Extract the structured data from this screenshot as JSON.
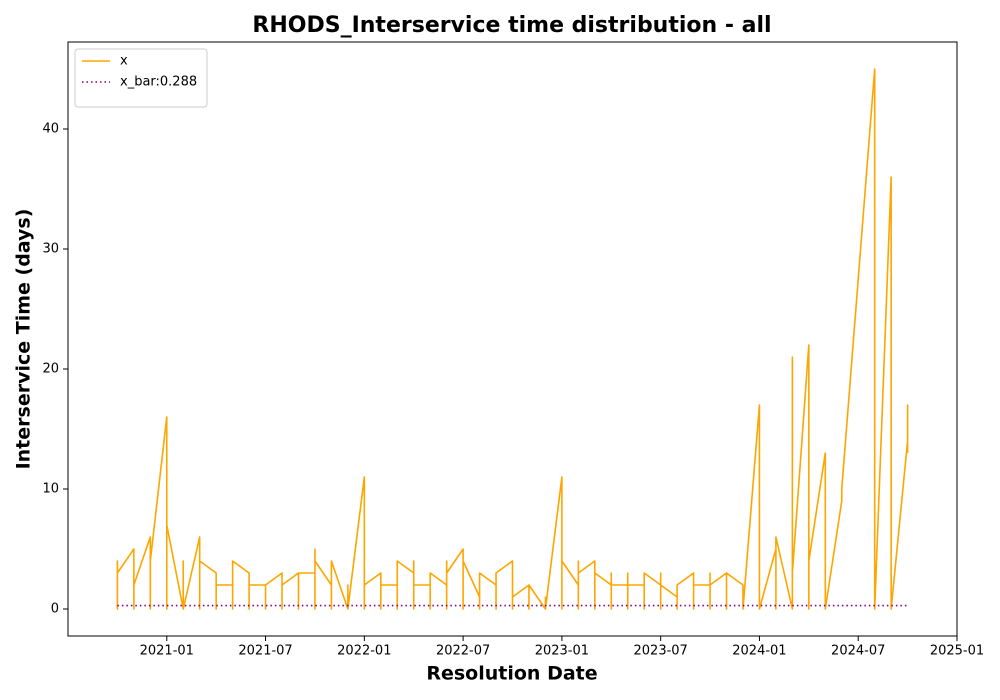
{
  "chart_data": {
    "type": "line",
    "title": "RHODS_Interservice time distribution - all",
    "x_label": "Resolution Date",
    "y_label": "Interservice Time (days)",
    "xlim": [
      "2020-07",
      "2025-01"
    ],
    "xticks": [
      "2021-01",
      "2021-07",
      "2022-01",
      "2022-07",
      "2023-01",
      "2023-07",
      "2024-01",
      "2024-07",
      "2025-01"
    ],
    "ylim": [
      -2.25,
      47.25
    ],
    "yticks": [
      0,
      10,
      20,
      30,
      40
    ],
    "grid": false,
    "legend": "upper left",
    "series": [
      {
        "name": "x",
        "color": "#ffa500",
        "style": "solid",
        "x": [
          "2020-10",
          "2020-10",
          "2020-10",
          "2020-10",
          "2020-10",
          "2020-11",
          "2020-11",
          "2020-11",
          "2020-11",
          "2020-11",
          "2020-12",
          "2020-12",
          "2020-12",
          "2020-12",
          "2020-12",
          "2021-01",
          "2021-01",
          "2021-01",
          "2021-02",
          "2021-02",
          "2021-02",
          "2021-02",
          "2021-02",
          "2021-03",
          "2021-03",
          "2021-03",
          "2021-03",
          "2021-03",
          "2021-04",
          "2021-04",
          "2021-04",
          "2021-04",
          "2021-04",
          "2021-05",
          "2021-05",
          "2021-05",
          "2021-05",
          "2021-05",
          "2021-06",
          "2021-06",
          "2021-06",
          "2021-06",
          "2021-06",
          "2021-07",
          "2021-07",
          "2021-07",
          "2021-07",
          "2021-07",
          "2021-08",
          "2021-08",
          "2021-08",
          "2021-08",
          "2021-08",
          "2021-09",
          "2021-09",
          "2021-09",
          "2021-09",
          "2021-09",
          "2021-10",
          "2021-10",
          "2021-10",
          "2021-10",
          "2021-10",
          "2021-11",
          "2021-11",
          "2021-11",
          "2021-11",
          "2021-11",
          "2021-12",
          "2021-12",
          "2021-12",
          "2022-01",
          "2022-01",
          "2022-01",
          "2022-01",
          "2022-01",
          "2022-02",
          "2022-02",
          "2022-02",
          "2022-02",
          "2022-02",
          "2022-03",
          "2022-03",
          "2022-03",
          "2022-03",
          "2022-03",
          "2022-04",
          "2022-04",
          "2022-04",
          "2022-04",
          "2022-04",
          "2022-05",
          "2022-05",
          "2022-05",
          "2022-05",
          "2022-05",
          "2022-06",
          "2022-06",
          "2022-06",
          "2022-06",
          "2022-06",
          "2022-07",
          "2022-07",
          "2022-07",
          "2022-07",
          "2022-07",
          "2022-08",
          "2022-08",
          "2022-08",
          "2022-08",
          "2022-08",
          "2022-09",
          "2022-09",
          "2022-09",
          "2022-09",
          "2022-09",
          "2022-10",
          "2022-10",
          "2022-10",
          "2022-10",
          "2022-10",
          "2022-11",
          "2022-11",
          "2022-11",
          "2022-11",
          "2022-11",
          "2022-12",
          "2022-12",
          "2022-12",
          "2023-01",
          "2023-01",
          "2023-01",
          "2023-01",
          "2023-01",
          "2023-02",
          "2023-02",
          "2023-02",
          "2023-02",
          "2023-02",
          "2023-03",
          "2023-03",
          "2023-03",
          "2023-03",
          "2023-03",
          "2023-04",
          "2023-04",
          "2023-04",
          "2023-04",
          "2023-04",
          "2023-05",
          "2023-05",
          "2023-05",
          "2023-05",
          "2023-05",
          "2023-06",
          "2023-06",
          "2023-06",
          "2023-06",
          "2023-06",
          "2023-07",
          "2023-07",
          "2023-07",
          "2023-07",
          "2023-07",
          "2023-08",
          "2023-08",
          "2023-08",
          "2023-08",
          "2023-08",
          "2023-09",
          "2023-09",
          "2023-09",
          "2023-09",
          "2023-09",
          "2023-10",
          "2023-10",
          "2023-10",
          "2023-10",
          "2023-10",
          "2023-11",
          "2023-11",
          "2023-11",
          "2023-11",
          "2023-11",
          "2023-12",
          "2023-12",
          "2023-12",
          "2023-12",
          "2024-01",
          "2024-01",
          "2024-02",
          "2024-02",
          "2024-02",
          "2024-02",
          "2024-02",
          "2024-03",
          "2024-03",
          "2024-03",
          "2024-03",
          "2024-03",
          "2024-04",
          "2024-04",
          "2024-04",
          "2024-05",
          "2024-05",
          "2024-06",
          "2024-06",
          "2024-08",
          "2024-08",
          "2024-08",
          "2024-08",
          "2024-09",
          "2024-09",
          "2024-10",
          "2024-10",
          "2024-10"
        ],
        "values": [
          3,
          0,
          4,
          0,
          3,
          5,
          0,
          3,
          0,
          2,
          6,
          0,
          5,
          0,
          4,
          16,
          0,
          7,
          0,
          4,
          0,
          3,
          0,
          6,
          0,
          4,
          0,
          4,
          3,
          0,
          3,
          0,
          2,
          2,
          0,
          4,
          0,
          4,
          3,
          0,
          2,
          0,
          2,
          2,
          0,
          2,
          0,
          2,
          3,
          0,
          3,
          0,
          2,
          3,
          0,
          2,
          0,
          3,
          3,
          0,
          5,
          0,
          4,
          2,
          0,
          4,
          0,
          4,
          0,
          2,
          0,
          11,
          0,
          4,
          0,
          2,
          3,
          0,
          2,
          0,
          2,
          2,
          0,
          2,
          0,
          4,
          3,
          0,
          4,
          0,
          2,
          2,
          0,
          3,
          0,
          3,
          2,
          0,
          4,
          0,
          3,
          5,
          0,
          1,
          0,
          4,
          1,
          0,
          2,
          0,
          3,
          2,
          0,
          3,
          0,
          3,
          4,
          0,
          2,
          0,
          1,
          2,
          0,
          1,
          0,
          2,
          0,
          1,
          0,
          11,
          0,
          4,
          0,
          4,
          2,
          0,
          4,
          0,
          3,
          4,
          0,
          2,
          0,
          3,
          2,
          0,
          3,
          0,
          2,
          2,
          0,
          3,
          0,
          2,
          2,
          0,
          1,
          0,
          3,
          2,
          0,
          3,
          0,
          2,
          1,
          0,
          2,
          0,
          2,
          3,
          0,
          2,
          0,
          2,
          2,
          0,
          3,
          0,
          2,
          3,
          0,
          2,
          0,
          3,
          2,
          0,
          1,
          0,
          17,
          0,
          5,
          0,
          4,
          0,
          6,
          0,
          21,
          0,
          14,
          3,
          22,
          0,
          4,
          13,
          0,
          9,
          10,
          45,
          3,
          3,
          0,
          36,
          0,
          14,
          17,
          13
        ]
      },
      {
        "name": "x_bar:0.288",
        "color": "#800080",
        "style": "dotted",
        "x": [
          "2020-10",
          "2024-10"
        ],
        "values": [
          0.288,
          0.288
        ]
      }
    ]
  }
}
